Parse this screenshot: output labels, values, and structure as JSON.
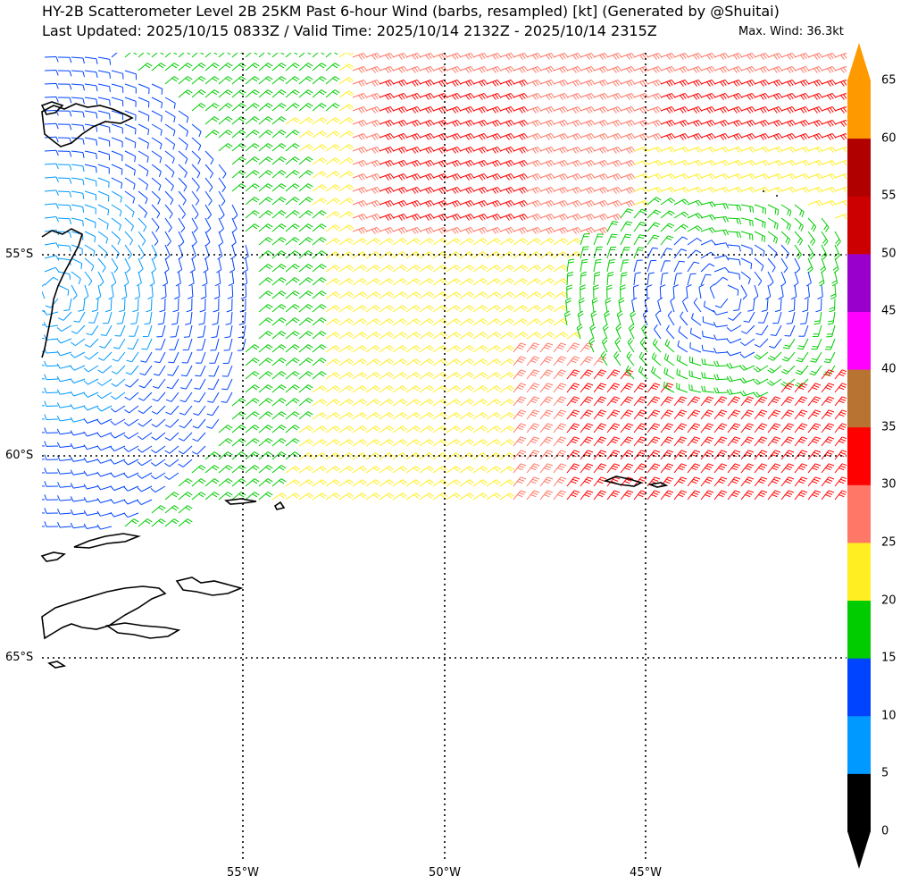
{
  "title": {
    "line1": "HY-2B Scatterometer Level 2B 25KM Past 6-hour Wind (barbs, resampled) [kt] (Generated by @Shuitai)",
    "line2": "Last Updated: 2025/10/15 0833Z / Valid Time: 2025/10/14 2132Z - 2025/10/14 2315Z",
    "max_wind": "Max. Wind: 36.3kt"
  },
  "map": {
    "lat_labels": [
      "55°S",
      "60°S",
      "65°S"
    ],
    "lon_labels": [
      "55°W",
      "50°W",
      "45°W"
    ],
    "gridlines": "dotted",
    "land_color": "#000000",
    "ocean_color": "#ffffff"
  },
  "colorbar": {
    "unit": "kt",
    "ticks": [
      "0",
      "5",
      "10",
      "15",
      "20",
      "25",
      "30",
      "35",
      "40",
      "45",
      "50",
      "55",
      "60",
      "65"
    ],
    "colors": [
      "#000000",
      "#0099ff",
      "#0044ff",
      "#00cc00",
      "#ffee22",
      "#ff7766",
      "#ff0000",
      "#b87333",
      "#ff00ff",
      "#9900cc",
      "#cc0000",
      "#b00000",
      "#ff9900"
    ],
    "extend": "both"
  },
  "wind_field": {
    "regions": [
      {
        "name": "north-band",
        "speed_range_kt": [
          25,
          36
        ]
      },
      {
        "name": "western-flow",
        "speed_range_kt": [
          5,
          20
        ]
      },
      {
        "name": "central-band",
        "speed_range_kt": [
          15,
          25
        ]
      },
      {
        "name": "eastern-vortex",
        "speed_range_kt": [
          10,
          20
        ]
      },
      {
        "name": "south-east-band",
        "speed_range_kt": [
          25,
          35
        ]
      }
    ]
  }
}
